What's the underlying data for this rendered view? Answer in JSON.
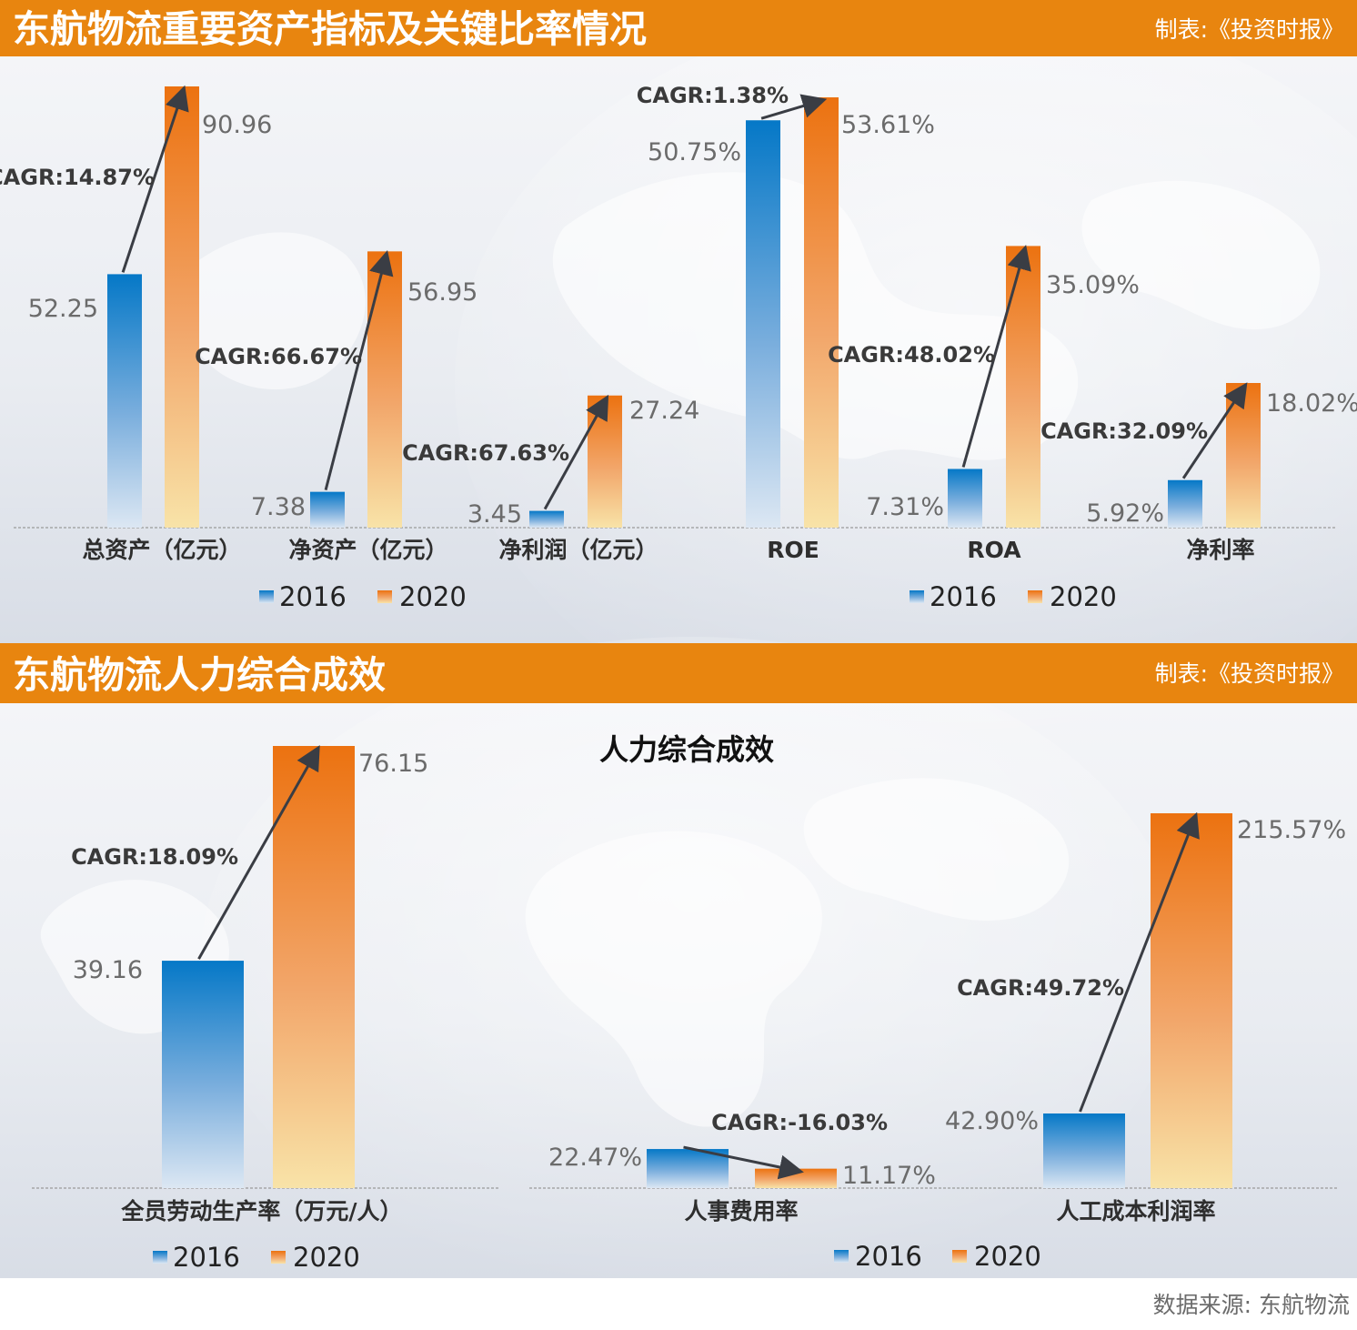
{
  "sections": [
    {
      "title": "东航物流重要资产指标及关键比率情况",
      "credit": "制表:《投资时报》"
    },
    {
      "title": "东航物流人力综合成效",
      "credit": "制表:《投资时报》"
    }
  ],
  "source": "数据来源: 东航物流",
  "colors": {
    "banner": "#e8850f",
    "series_2016": "#0a7fc9",
    "series_2020": "#ee7d1e"
  },
  "chart_data": [
    {
      "type": "bar",
      "categories": [
        "总资产（亿元）",
        "净资产（亿元）",
        "净利润（亿元）"
      ],
      "series": [
        {
          "name": "2016",
          "values": [
            52.25,
            7.38,
            3.45
          ],
          "labels": [
            "52.25",
            "7.38",
            "3.45"
          ]
        },
        {
          "name": "2020",
          "values": [
            90.96,
            56.95,
            27.24
          ],
          "labels": [
            "90.96",
            "56.95",
            "27.24"
          ]
        }
      ],
      "annotations": [
        "CAGR:14.87%",
        "CAGR:66.67%",
        "CAGR:67.63%"
      ],
      "ylim": [
        0,
        100
      ],
      "legend": "bottom"
    },
    {
      "type": "bar",
      "categories": [
        "ROE",
        "ROA",
        "净利率"
      ],
      "series": [
        {
          "name": "2016",
          "values": [
            50.75,
            7.31,
            5.92
          ],
          "labels": [
            "50.75%",
            "7.31%",
            "5.92%"
          ]
        },
        {
          "name": "2020",
          "values": [
            53.61,
            35.09,
            18.02
          ],
          "labels": [
            "53.61%",
            "35.09%",
            "18.02%"
          ]
        }
      ],
      "annotations": [
        "CAGR:1.38%",
        "CAGR:48.02%",
        "CAGR:32.09%"
      ],
      "ylim": [
        0,
        59
      ],
      "legend": "bottom"
    },
    {
      "type": "bar",
      "categories": [
        "全员劳动生产率（万元/人）"
      ],
      "series": [
        {
          "name": "2016",
          "values": [
            39.16
          ],
          "labels": [
            "39.16"
          ]
        },
        {
          "name": "2020",
          "values": [
            76.15
          ],
          "labels": [
            "76.15"
          ]
        }
      ],
      "annotations": [
        "CAGR:18.09%"
      ],
      "ylim": [
        0,
        80
      ],
      "legend": "bottom"
    },
    {
      "type": "bar",
      "title": "人力综合成效",
      "categories": [
        "人事费用率",
        "人工成本利润率"
      ],
      "series": [
        {
          "name": "2016",
          "values": [
            22.47,
            42.9
          ],
          "labels": [
            "22.47%",
            "42.90%"
          ]
        },
        {
          "name": "2020",
          "values": [
            11.17,
            215.57
          ],
          "labels": [
            "11.17%",
            "215.57%"
          ]
        }
      ],
      "annotations": [
        "CAGR:-16.03%",
        "CAGR:49.72%"
      ],
      "ylim": [
        0,
        228
      ],
      "legend": "bottom"
    }
  ]
}
